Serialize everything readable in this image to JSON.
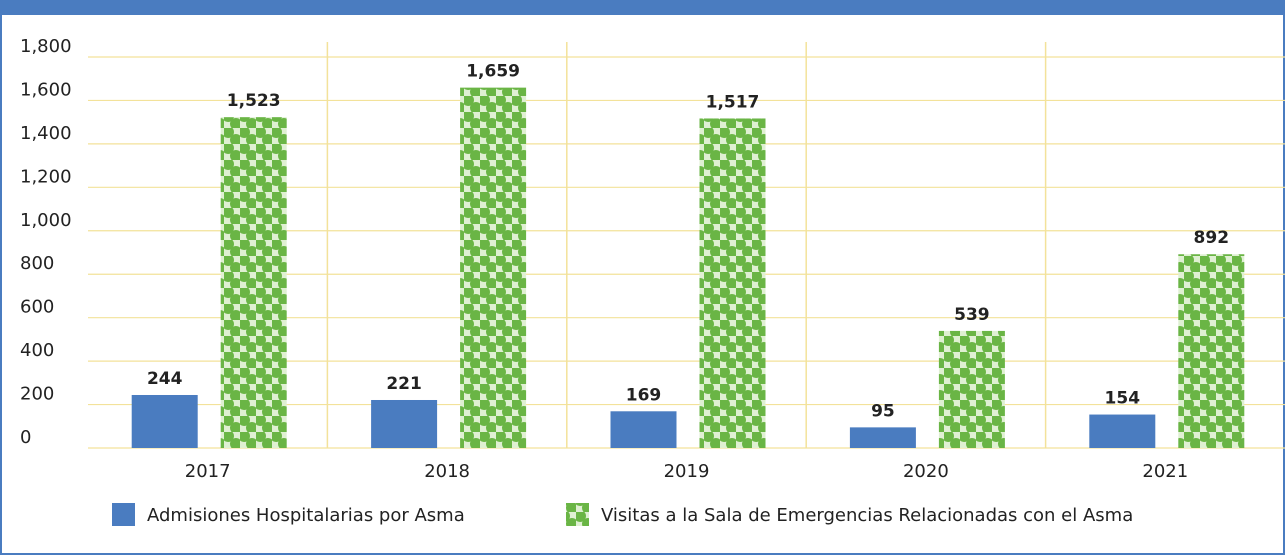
{
  "chart_data": {
    "type": "bar",
    "categories": [
      "2017",
      "2018",
      "2019",
      "2020",
      "2021"
    ],
    "series": [
      {
        "name": "Admisiones Hospitalarias por Asma",
        "color": "#4a7cc0",
        "values": [
          244,
          221,
          169,
          95,
          154
        ]
      },
      {
        "name": "Visitas a la Sala de Emergencias Relacionadas con el Asma",
        "color": "#6ab545",
        "values": [
          1523,
          1659,
          1517,
          539,
          892
        ],
        "value_labels": [
          "1,523",
          "1,659",
          "1,517",
          "539",
          "892"
        ]
      }
    ],
    "ylim": [
      0,
      1800
    ],
    "yticks": [
      0,
      200,
      400,
      600,
      800,
      {
        "value": 1000,
        "label": "1,000"
      },
      {
        "value": 1200,
        "label": "1,200"
      },
      {
        "value": 1400,
        "label": "1,400"
      },
      {
        "value": 1600,
        "label": "1,600"
      },
      {
        "value": 1800,
        "label": "1,800"
      }
    ],
    "grid": true
  }
}
